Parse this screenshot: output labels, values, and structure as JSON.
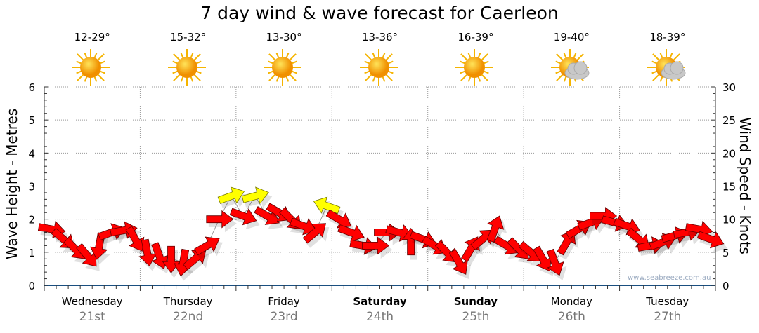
{
  "title": "7 day wind & wave forecast for Caerleon",
  "days": [
    {
      "name": "Wednesday",
      "date": "21st",
      "temp": "12-29°",
      "icon": "sun-icon",
      "bold": false
    },
    {
      "name": "Thursday",
      "date": "22nd",
      "temp": "15-32°",
      "icon": "sun-icon",
      "bold": false
    },
    {
      "name": "Friday",
      "date": "23rd",
      "temp": "13-30°",
      "icon": "sun-icon",
      "bold": false
    },
    {
      "name": "Saturday",
      "date": "24th",
      "temp": "13-36°",
      "icon": "sun-icon",
      "bold": true
    },
    {
      "name": "Sunday",
      "date": "25th",
      "temp": "16-39°",
      "icon": "sun-icon",
      "bold": true
    },
    {
      "name": "Monday",
      "date": "26th",
      "temp": "19-40°",
      "icon": "partly-cloudy-icon",
      "bold": false
    },
    {
      "name": "Tuesday",
      "date": "27th",
      "temp": "18-39°",
      "icon": "partly-cloudy-icon",
      "bold": false
    }
  ],
  "watermark": "www.seabreeze.com.au",
  "chart_data": {
    "type": "scatter",
    "title": "7 day wind & wave forecast for Caerleon",
    "ylabel": "Wave Height - Metres",
    "y2label": "Wind Speed - Knots",
    "ylim": [
      0,
      6
    ],
    "y2lim": [
      0,
      30
    ],
    "yticks": [
      "0",
      "1",
      "2",
      "3",
      "4",
      "5",
      "6"
    ],
    "y2ticks": [
      "0",
      "5",
      "10",
      "15",
      "20",
      "25",
      "30"
    ],
    "grid": true,
    "interval_hours": 3,
    "colors": {
      "normal": "#ff0000",
      "strong": "#ffff00"
    },
    "wind_knots": [
      8.5,
      7,
      5.5,
      4.5,
      6,
      8,
      8.3,
      7,
      5,
      4.5,
      4,
      3.5,
      4,
      6,
      10,
      13.5,
      10.5,
      13.5,
      10.5,
      11,
      10,
      9,
      8,
      12,
      10,
      8,
      6,
      6,
      8,
      8,
      6.5,
      7,
      6,
      5,
      3.5,
      5.5,
      7,
      8.5,
      6,
      5.5,
      5,
      4,
      3.5,
      6.5,
      8.5,
      9.5,
      10.5,
      9.5,
      9,
      7,
      6,
      6.5,
      7.5,
      8,
      8.5,
      7
    ],
    "direction_deg": [
      10,
      40,
      45,
      50,
      100,
      -20,
      -10,
      60,
      80,
      70,
      90,
      100,
      -40,
      -30,
      0,
      -20,
      20,
      -15,
      30,
      30,
      45,
      20,
      -40,
      -160,
      30,
      20,
      10,
      0,
      0,
      15,
      -90,
      20,
      30,
      45,
      60,
      -60,
      -40,
      -70,
      30,
      45,
      40,
      60,
      70,
      -60,
      -30,
      -20,
      0,
      15,
      20,
      40,
      -10,
      -20,
      -15,
      -10,
      10,
      20
    ],
    "strong": [
      0,
      0,
      0,
      0,
      0,
      0,
      0,
      0,
      0,
      0,
      0,
      0,
      0,
      0,
      0,
      1,
      0,
      1,
      0,
      0,
      0,
      0,
      0,
      1,
      0,
      0,
      0,
      0,
      0,
      0,
      0,
      0,
      0,
      0,
      0,
      0,
      0,
      0,
      0,
      0,
      0,
      0,
      0,
      0,
      0,
      0,
      0,
      0,
      0,
      0,
      0,
      0,
      0,
      0,
      0,
      0
    ]
  }
}
